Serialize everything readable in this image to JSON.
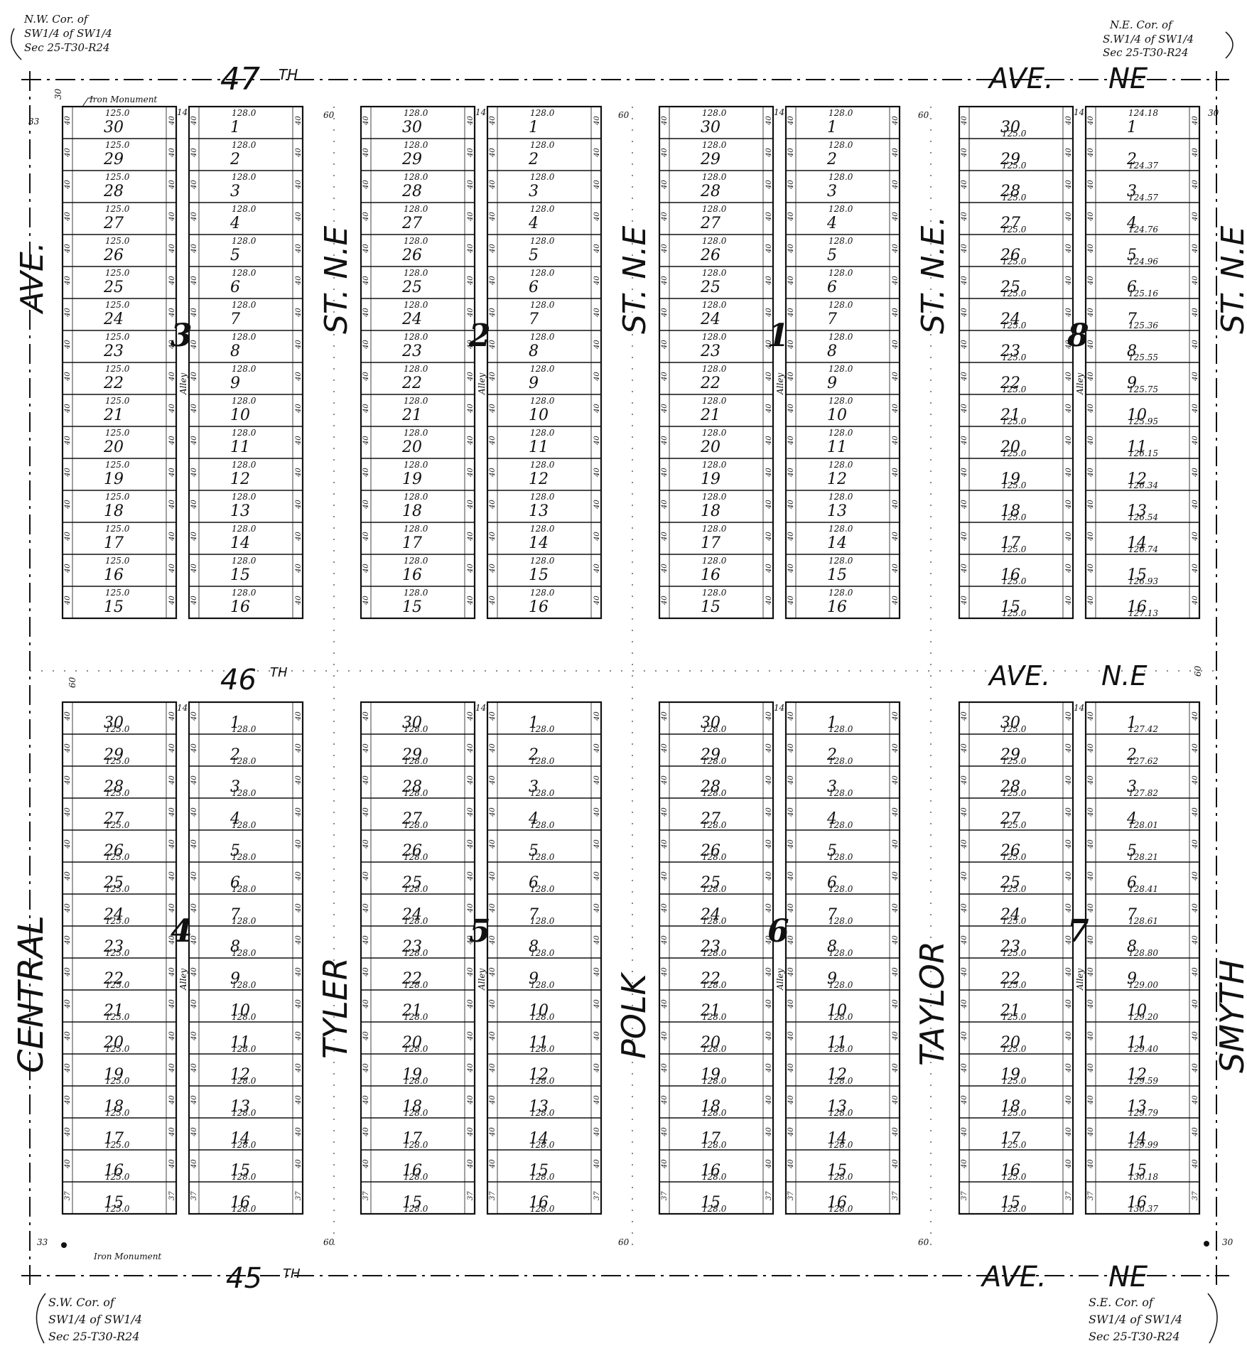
{
  "streets": {
    "top_avenue": [
      "47",
      "TH",
      "AVE.",
      "NE"
    ],
    "middle_avenue": [
      "46",
      "TH",
      "AVE.",
      "N.E"
    ],
    "bottom_avenue": [
      "45",
      "TH",
      "AVE.",
      "NE"
    ],
    "central": [
      "CENTRAL",
      "AVE."
    ],
    "tyler": [
      "TYLER",
      "ST. N.E"
    ],
    "polk": [
      "POLK",
      "ST. N.E"
    ],
    "taylor": [
      "TAYLOR",
      "ST. N.E."
    ],
    "smyth": [
      "SMYTH",
      "ST. N.E"
    ]
  },
  "alley_label": "Alley",
  "corners": {
    "nw": [
      "N.W. Cor. of",
      "SW1/4 of SW1/4",
      "Sec 25-T30-R24"
    ],
    "ne": [
      "N.E. Cor. of",
      "S.W1/4 of SW1/4",
      "Sec 25-T30-R24"
    ],
    "sw": [
      "S.W. Cor. of",
      "SW1/4 of SW1/4",
      "Sec 25-T30-R24"
    ],
    "se": [
      "S.E. Cor. of",
      "SW1/4 of SW1/4",
      "Sec 25-T30-R24"
    ]
  },
  "monuments": [
    "Iron Monument",
    "Iron Monument"
  ],
  "widths": {
    "avenue": "60",
    "street": "60",
    "alley": "14",
    "edge": "33",
    "edge_top": "30",
    "edge_right": "30"
  },
  "blocks": [
    {
      "number": "3",
      "left_dim": "125.0",
      "right_dim": "128.0"
    },
    {
      "number": "2",
      "left_dim": "128.0",
      "right_dim": "128.0"
    },
    {
      "number": "1",
      "left_dim": "128.0",
      "right_dim": "128.0"
    },
    {
      "number": "8",
      "left_dim": "125.0",
      "right_dim": "125.0"
    },
    {
      "number": "4",
      "left_dim": "125.0",
      "right_dim": "128.0"
    },
    {
      "number": "5",
      "left_dim": "128.0",
      "right_dim": "128.0"
    },
    {
      "number": "6",
      "left_dim": "128.0",
      "right_dim": "128.0"
    },
    {
      "number": "7",
      "left_dim": "125.0",
      "right_dim": "129.40"
    }
  ],
  "block8_east_dims": [
    "124.18",
    "124.37",
    "124.57",
    "124.76",
    "124.96",
    "125.16",
    "125.36",
    "125.55",
    "125.75",
    "125.95",
    "126.15",
    "126.34",
    "126.54",
    "126.74",
    "126.93",
    "127.13"
  ],
  "block7_east_dims": [
    "127.42",
    "127.62",
    "127.82",
    "128.01",
    "128.21",
    "128.41",
    "128.61",
    "128.80",
    "129.00",
    "129.20",
    "129.40",
    "129.59",
    "129.79",
    "129.99",
    "130.18",
    "130.37"
  ],
  "lot_frontage": "40",
  "end_lot_frontage": "37"
}
